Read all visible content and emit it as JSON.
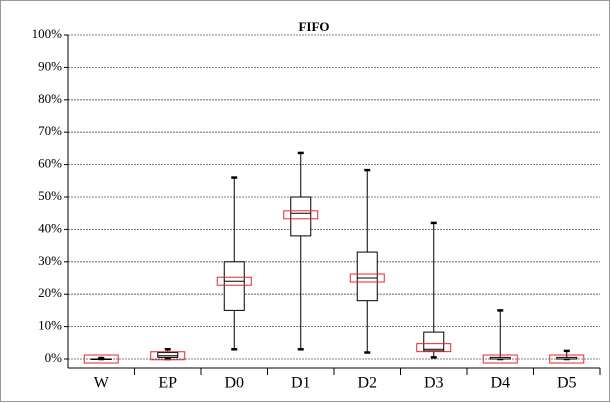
{
  "chart_data": {
    "type": "box",
    "title": "FIFO",
    "categories": [
      "W",
      "EP",
      "D0",
      "D1",
      "D2",
      "D3",
      "D4",
      "D5"
    ],
    "min": [
      0,
      0,
      3,
      3,
      2,
      0.5,
      0,
      0
    ],
    "q1": [
      0,
      0.5,
      15,
      38,
      18,
      2.5,
      0,
      0
    ],
    "median": [
      0,
      1,
      24,
      45,
      25,
      3,
      0,
      0
    ],
    "q3": [
      0,
      2,
      30,
      50,
      33,
      8.3,
      0.5,
      0.5
    ],
    "max": [
      0.3,
      3,
      56,
      63.6,
      58.3,
      42,
      15,
      2.5
    ],
    "mean": [
      0,
      1,
      24,
      44.5,
      25,
      3.5,
      0,
      0
    ],
    "color": "#000000",
    "mean_color": "#e8262a",
    "ylim": [
      0,
      100
    ],
    "yticks": [
      {
        "value": 0,
        "label": "0%"
      },
      {
        "value": 10,
        "label": "10%"
      },
      {
        "value": 20,
        "label": "20%"
      },
      {
        "value": 30,
        "label": "30%"
      },
      {
        "value": 40,
        "label": "40%"
      },
      {
        "value": 50,
        "label": "50%"
      },
      {
        "value": 60,
        "label": "60%"
      },
      {
        "value": 70,
        "label": "70%"
      },
      {
        "value": 80,
        "label": "80%"
      },
      {
        "value": 90,
        "label": "90%"
      },
      {
        "value": 100,
        "label": "100%"
      }
    ],
    "grid": true
  }
}
